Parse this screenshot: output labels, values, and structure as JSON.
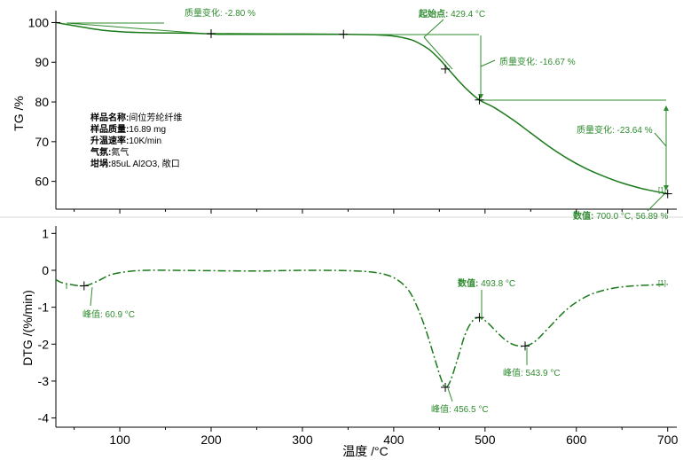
{
  "chart_data": [
    {
      "type": "line",
      "panel": "TG",
      "ylabel": "TG /%",
      "xlabel": "温度 /°C",
      "xlim": [
        30,
        710
      ],
      "ylim": [
        53,
        103
      ],
      "yticks": [
        60,
        70,
        80,
        90,
        100
      ],
      "line_color": "#1a7a1a",
      "series": [
        {
          "name": "[1]",
          "x": [
            30,
            40,
            60,
            80,
            100,
            120,
            140,
            160,
            180,
            200,
            250,
            300,
            350,
            380,
            400,
            410,
            420,
            430,
            440,
            450,
            460,
            470,
            480,
            493.8,
            510,
            530,
            550,
            570,
            590,
            610,
            630,
            650,
            670,
            690,
            700
          ],
          "y": [
            100,
            99.6,
            98.8,
            98.1,
            97.7,
            97.5,
            97.4,
            97.35,
            97.3,
            97.2,
            97.15,
            97.1,
            97.05,
            96.9,
            96.6,
            96.2,
            95.6,
            94.5,
            93.0,
            90.8,
            88.2,
            85.6,
            83.2,
            80.5,
            78.6,
            75.6,
            72.2,
            68.8,
            65.8,
            63.3,
            61.3,
            59.6,
            58.3,
            57.3,
            56.89
          ]
        }
      ],
      "markers": [
        [
          30,
          100
        ],
        [
          200,
          97.2
        ],
        [
          345,
          97.05
        ],
        [
          456.5,
          88.3
        ],
        [
          493.8,
          80.5
        ],
        [
          700,
          56.89
        ]
      ],
      "annotations": {
        "mass_change_1": "质量变化: -2.80 %",
        "onset_label": "起始点:",
        "onset_value": " 429.4 °C",
        "mass_change_2": "质量变化: -16.67 %",
        "mass_change_3": "质量变化: -23.64 %",
        "end_label": "数值:",
        "end_value": " 700.0 °C, 56.89 %",
        "series_tag": "[1]"
      },
      "sample_info": {
        "name_label": "样品名称:",
        "name_value": "间位芳纶纤维",
        "mass_label": "样品质量:",
        "mass_value": "16.89 mg",
        "rate_label": "升温速率:",
        "rate_value": "10K/min",
        "atm_label": "气氛:",
        "atm_value": "氮气",
        "crucible_label": "坩埚:",
        "crucible_value": "85uL Al2O3, 敞口"
      }
    },
    {
      "type": "line",
      "panel": "DTG",
      "ylabel": "DTG /(%/min)",
      "xlabel": "温度 /°C",
      "xlim": [
        30,
        710
      ],
      "ylim": [
        -4.25,
        1.2
      ],
      "yticks": [
        -4,
        -3,
        -2,
        -1,
        0,
        1
      ],
      "xticks": [
        100,
        200,
        300,
        400,
        500,
        600,
        700
      ],
      "line_color": "#1a7a1a",
      "line_style": "dash-dot",
      "series": [
        {
          "name": "[1]",
          "x": [
            30,
            35,
            45,
            60.9,
            75,
            90,
            110,
            130,
            160,
            200,
            250,
            300,
            350,
            380,
            400,
            415,
            425,
            435,
            445,
            452,
            456.5,
            462,
            470,
            478,
            486,
            493.8,
            502,
            512,
            522,
            532,
            543.9,
            555,
            570,
            590,
            610,
            630,
            650,
            670,
            690,
            700
          ],
          "y": [
            -0.25,
            -0.32,
            -0.38,
            -0.42,
            -0.3,
            -0.12,
            -0.03,
            0,
            0,
            -0.01,
            -0.02,
            0,
            -0.01,
            -0.06,
            -0.2,
            -0.5,
            -0.95,
            -1.6,
            -2.4,
            -2.95,
            -3.17,
            -3.0,
            -2.4,
            -1.75,
            -1.38,
            -1.28,
            -1.4,
            -1.65,
            -1.88,
            -2.02,
            -2.05,
            -1.92,
            -1.55,
            -1.05,
            -0.72,
            -0.54,
            -0.45,
            -0.41,
            -0.39,
            -0.38
          ]
        }
      ],
      "markers": [
        [
          60.9,
          -0.42
        ],
        [
          456.5,
          -3.17
        ],
        [
          493.8,
          -1.28
        ],
        [
          543.9,
          -2.05
        ]
      ],
      "annotations": {
        "peak_1": "峰值: 60.9 °C",
        "peak_2": "峰值: 456.5 °C",
        "value_label": "数值:",
        "value_value": " 493.8 °C",
        "peak_3": "峰值: 543.9 °C",
        "series_tag": "[1]"
      }
    }
  ]
}
